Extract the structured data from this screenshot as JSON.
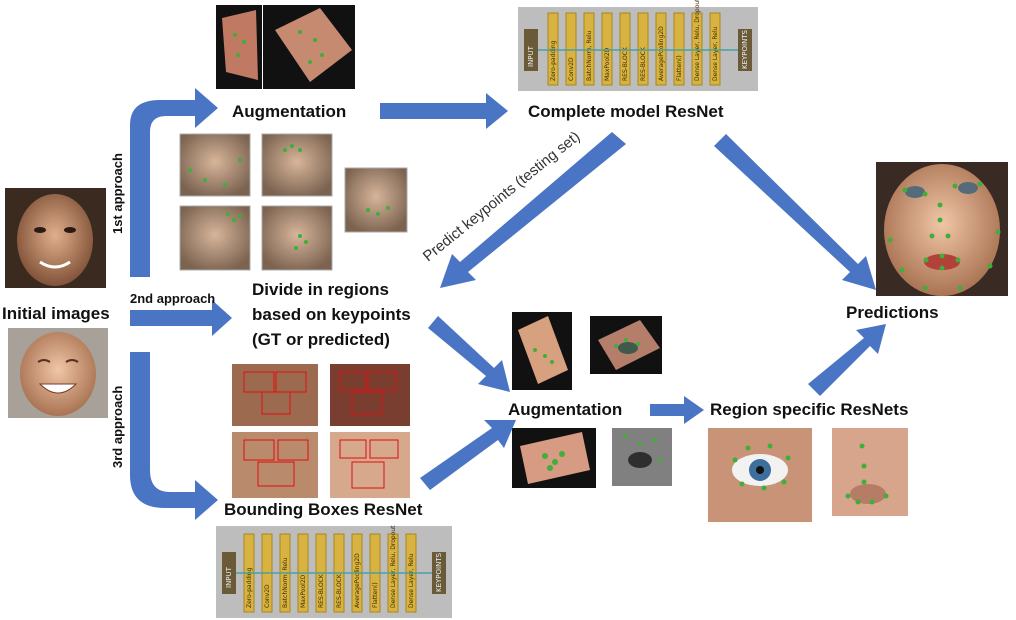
{
  "labels": {
    "initial_images": "Initial images",
    "approach_1": "1st approach",
    "approach_2": "2nd approach",
    "approach_3": "3rd approach",
    "augmentation_top": "Augmentation",
    "complete_model": "Complete model ResNet",
    "divide_line1": "Divide in regions",
    "divide_line2": "based on keypoints",
    "divide_line3": "(GT or predicted)",
    "predict_keypoints": "Predict keypoints (testing set)",
    "predictions": "Predictions",
    "augmentation_mid": "Augmentation",
    "region_resnets": "Region specific ResNets",
    "bbox_resnet": "Bounding Boxes ResNet"
  },
  "network_layers": {
    "input": "INPUT",
    "output": "KEYPOINTS",
    "layers": [
      "Zero-padding",
      "Conv2D",
      "BatchNorm, Relu",
      "MaxPool2D",
      "RES-BLOCK",
      "RES-BLOCK",
      "AveragePooling2D",
      "Flatten()",
      "Dense Layer, Relu, Dropout",
      "Dense Layer, Relu"
    ]
  },
  "colors": {
    "arrow": "#4a74c4",
    "keypoint": "#3fae3a",
    "layer": "#d9b341",
    "panel": "#bdbdbd"
  }
}
